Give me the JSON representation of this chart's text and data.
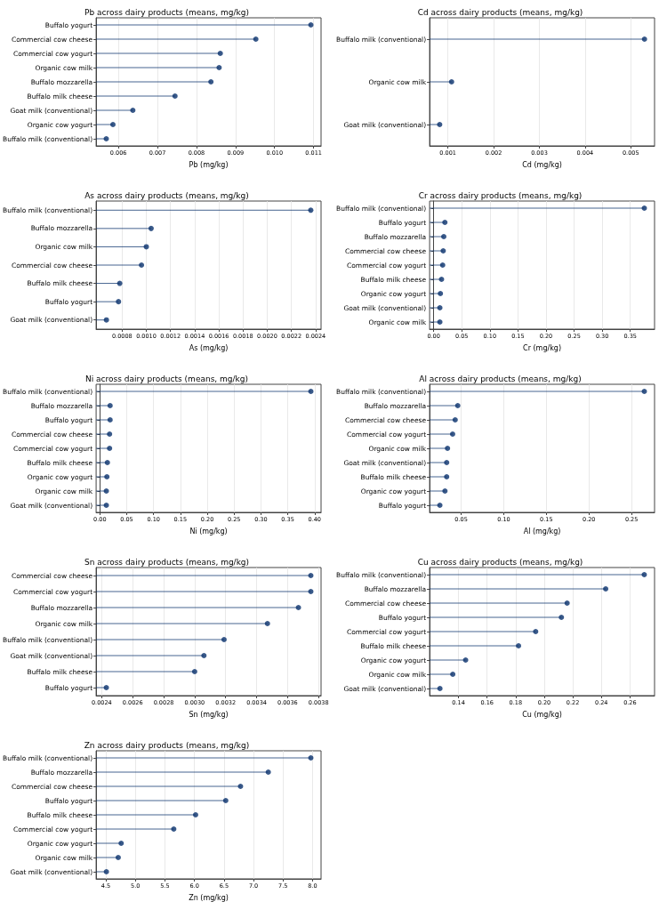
{
  "chart_data": [
    {
      "type": "lollipop",
      "orientation": "horizontal",
      "title": "Pb across dairy products (means, mg/kg)",
      "xlabel": "Pb (mg/kg)",
      "categories": [
        "Buffalo yogurt",
        "Commercial cow cheese",
        "Commercial cow yogurt",
        "Organic cow milk",
        "Buffalo mozzarella",
        "Buffalo milk cheese",
        "Goat milk (conventional)",
        "Organic cow yogurt",
        "Buffalo milk (conventional)"
      ],
      "values": [
        0.01093,
        0.00952,
        0.00861,
        0.00858,
        0.00837,
        0.00745,
        0.00637,
        0.00586,
        0.00569
      ],
      "color": "#08306b",
      "marker": "circle",
      "grid": "x",
      "xlim": [
        0.00543,
        0.01119
      ],
      "xticks": [
        0.006,
        0.007,
        0.008,
        0.009,
        {
          "value": 0.01,
          "label": "0.010"
        },
        0.011
      ]
    },
    {
      "type": "lollipop",
      "orientation": "horizontal",
      "title": "Cd across dairy products (means, mg/kg)",
      "xlabel": "Cd (mg/kg)",
      "categories": [
        "Buffalo milk (conventional)",
        "Organic cow milk",
        "Goat milk (conventional)"
      ],
      "values": [
        0.0053,
        0.00108,
        0.00082
      ],
      "color": "#08306b",
      "marker": "circle",
      "grid": "x",
      "xlim": [
        0.0006,
        0.00552
      ],
      "xticks": [
        0.001,
        0.002,
        0.003,
        0.004,
        0.005
      ]
    },
    {
      "type": "lollipop",
      "orientation": "horizontal",
      "title": "As across dairy products (means, mg/kg)",
      "xlabel": "As (mg/kg)",
      "categories": [
        "Buffalo milk (conventional)",
        "Buffalo mozzarella",
        "Organic cow milk",
        "Commercial cow cheese",
        "Buffalo milk cheese",
        "Buffalo yogurt",
        "Goat milk (conventional)"
      ],
      "values": [
        0.00236,
        0.00104,
        0.001,
        0.00096,
        0.00078,
        0.00077,
        0.00067
      ],
      "color": "#08306b",
      "marker": "circle",
      "grid": "x",
      "xlim": [
        0.000585,
        0.002445
      ],
      "xticks": [
        0.0008,
        {
          "value": 0.001,
          "label": "0.0010"
        },
        0.0012,
        0.0014,
        0.0016,
        0.0018,
        {
          "value": 0.002,
          "label": "0.0020"
        },
        0.0022,
        0.0024
      ]
    },
    {
      "type": "lollipop",
      "orientation": "horizontal",
      "title": "Cr across dairy products (means, mg/kg)",
      "xlabel": "Cr (mg/kg)",
      "categories": [
        "Buffalo milk (conventional)",
        "Buffalo yogurt",
        "Buffalo mozzarella",
        "Commercial cow cheese",
        "Commercial cow yogurt",
        "Buffalo milk cheese",
        "Organic cow yogurt",
        "Goat milk (conventional)",
        "Organic cow milk"
      ],
      "values": [
        0.375,
        0.02,
        0.018,
        0.017,
        0.016,
        0.014,
        0.012,
        0.011,
        0.011
      ],
      "color": "#08306b",
      "marker": "circle",
      "grid": "x",
      "xlim": [
        -0.0072,
        0.3932
      ],
      "xticks": [
        {
          "value": 0,
          "label": "0.00"
        },
        0.05,
        {
          "value": 0.1,
          "label": "0.10"
        },
        0.15,
        {
          "value": 0.2,
          "label": "0.20"
        },
        0.25,
        {
          "value": 0.3,
          "label": "0.30"
        },
        0.35
      ]
    },
    {
      "type": "lollipop",
      "orientation": "horizontal",
      "title": "Ni across dairy products (means, mg/kg)",
      "xlabel": "Ni (mg/kg)",
      "categories": [
        "Buffalo milk (conventional)",
        "Buffalo mozzarella",
        "Buffalo yogurt",
        "Commercial cow cheese",
        "Commercial cow yogurt",
        "Buffalo milk cheese",
        "Organic cow yogurt",
        "Organic cow milk",
        "Goat milk (conventional)"
      ],
      "values": [
        0.393,
        0.019,
        0.019,
        0.018,
        0.018,
        0.014,
        0.013,
        0.012,
        0.012
      ],
      "color": "#08306b",
      "marker": "circle",
      "grid": "x",
      "xlim": [
        -0.007,
        0.412
      ],
      "xticks": [
        {
          "value": 0,
          "label": "0.00"
        },
        0.05,
        {
          "value": 0.1,
          "label": "0.10"
        },
        0.15,
        {
          "value": 0.2,
          "label": "0.20"
        },
        0.25,
        {
          "value": 0.3,
          "label": "0.30"
        },
        0.35,
        {
          "value": 0.4,
          "label": "0.40"
        }
      ]
    },
    {
      "type": "lollipop",
      "orientation": "horizontal",
      "title": "Al across dairy products (means, mg/kg)",
      "xlabel": "Al (mg/kg)",
      "categories": [
        "Buffalo milk (conventional)",
        "Buffalo mozzarella",
        "Commercial cow cheese",
        "Commercial cow yogurt",
        "Organic cow milk",
        "Goat milk (conventional)",
        "Buffalo milk cheese",
        "Organic cow yogurt",
        "Buffalo yogurt"
      ],
      "values": [
        0.265,
        0.046,
        0.043,
        0.04,
        0.034,
        0.033,
        0.033,
        0.031,
        0.025
      ],
      "color": "#08306b",
      "marker": "circle",
      "grid": "x",
      "xlim": [
        0.013,
        0.277
      ],
      "xticks": [
        0.05,
        {
          "value": 0.1,
          "label": "0.10"
        },
        0.15,
        {
          "value": 0.2,
          "label": "0.20"
        },
        0.25
      ]
    },
    {
      "type": "lollipop",
      "orientation": "horizontal",
      "title": "Sn across dairy products (means, mg/kg)",
      "xlabel": "Sn (mg/kg)",
      "categories": [
        "Commercial cow cheese",
        "Commercial cow yogurt",
        "Buffalo mozzarella",
        "Organic cow milk",
        "Buffalo milk (conventional)",
        "Goat milk (conventional)",
        "Buffalo milk cheese",
        "Buffalo yogurt"
      ],
      "values": [
        0.00375,
        0.00375,
        0.00367,
        0.00347,
        0.00319,
        0.00306,
        0.003,
        0.00243
      ],
      "color": "#08306b",
      "marker": "circle",
      "grid": "x",
      "xlim": [
        0.002364,
        0.003816
      ],
      "xticks": [
        0.0024,
        0.0026,
        0.0028,
        {
          "value": 0.003,
          "label": "0.0030"
        },
        0.0032,
        0.0034,
        0.0036,
        0.0038
      ]
    },
    {
      "type": "lollipop",
      "orientation": "horizontal",
      "title": "Cu across dairy products (means, mg/kg)",
      "xlabel": "Cu (mg/kg)",
      "categories": [
        "Buffalo milk (conventional)",
        "Buffalo mozzarella",
        "Commercial cow cheese",
        "Buffalo yogurt",
        "Commercial cow yogurt",
        "Buffalo milk cheese",
        "Organic cow yogurt",
        "Organic cow milk",
        "Goat milk (conventional)"
      ],
      "values": [
        0.27,
        0.243,
        0.216,
        0.212,
        0.194,
        0.182,
        0.145,
        0.136,
        0.127
      ],
      "color": "#08306b",
      "marker": "circle",
      "grid": "x",
      "xlim": [
        0.1198,
        0.2772
      ],
      "xticks": [
        0.14,
        0.16,
        0.18,
        {
          "value": 0.2,
          "label": "0.20"
        },
        0.22,
        0.24,
        0.26
      ]
    },
    {
      "type": "lollipop",
      "orientation": "horizontal",
      "title": "Zn across dairy products (means, mg/kg)",
      "xlabel": "Zn (mg/kg)",
      "categories": [
        "Buffalo milk (conventional)",
        "Buffalo mozzarella",
        "Commercial cow cheese",
        "Buffalo yogurt",
        "Buffalo milk cheese",
        "Commercial cow yogurt",
        "Organic cow yogurt",
        "Organic cow milk",
        "Goat milk (conventional)"
      ],
      "values": [
        7.97,
        7.25,
        6.78,
        6.53,
        6.02,
        5.65,
        4.76,
        4.71,
        4.51
      ],
      "color": "#08306b",
      "marker": "circle",
      "grid": "x",
      "xlim": [
        4.336,
        8.143
      ],
      "xticks": [
        4.5,
        {
          "value": 5,
          "label": "5.0"
        },
        5.5,
        {
          "value": 6,
          "label": "6.0"
        },
        6.5,
        {
          "value": 7,
          "label": "7.0"
        },
        7.5,
        {
          "value": 8,
          "label": "8.0"
        }
      ]
    }
  ]
}
